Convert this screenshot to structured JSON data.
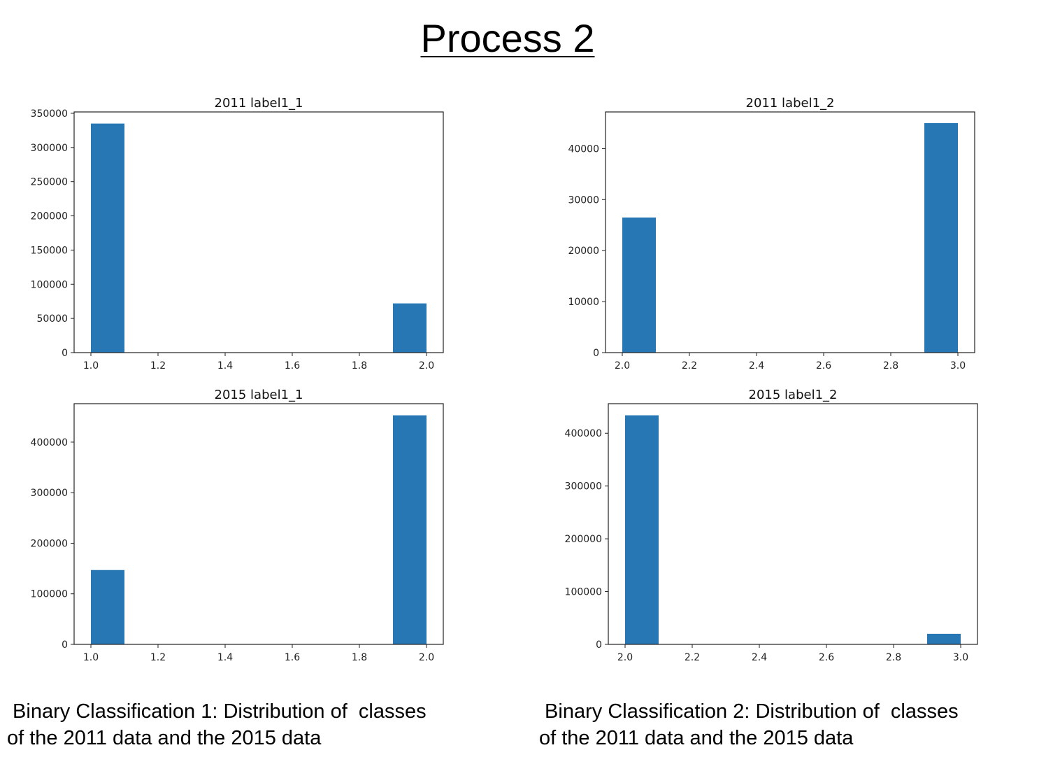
{
  "page": {
    "title": "Process 2",
    "captions": [
      [
        " Binary Classification 1: Distribution of  classes",
        "of the 2011 data and the 2015 data"
      ],
      [
        " Binary Classification 2: Distribution of  classes",
        "of the 2011 data and the 2015 data"
      ]
    ]
  },
  "colors": {
    "bar": "#2677b3",
    "axis": "#222222"
  },
  "chart_data": [
    {
      "type": "bar",
      "title": "2011 label1_1",
      "xlim": [
        0.95,
        2.05
      ],
      "ylim": [
        0,
        352000
      ],
      "xticks": [
        1.0,
        1.2,
        1.4,
        1.6,
        1.8,
        2.0
      ],
      "xtick_labels": [
        "1.0",
        "1.2",
        "1.4",
        "1.6",
        "1.8",
        "2.0"
      ],
      "yticks": [
        0,
        50000,
        100000,
        150000,
        200000,
        250000,
        300000,
        350000
      ],
      "ytick_labels": [
        "0",
        "50000",
        "100000",
        "150000",
        "200000",
        "250000",
        "300000",
        "350000"
      ],
      "bars": [
        {
          "x0": 1.0,
          "x1": 1.1,
          "value": 335000
        },
        {
          "x0": 1.9,
          "x1": 2.0,
          "value": 72000
        }
      ]
    },
    {
      "type": "bar",
      "title": "2011 label1_2",
      "xlim": [
        1.95,
        3.05
      ],
      "ylim": [
        0,
        47200
      ],
      "xticks": [
        2.0,
        2.2,
        2.4,
        2.6,
        2.8,
        3.0
      ],
      "xtick_labels": [
        "2.0",
        "2.2",
        "2.4",
        "2.6",
        "2.8",
        "3.0"
      ],
      "yticks": [
        0,
        10000,
        20000,
        30000,
        40000
      ],
      "ytick_labels": [
        "0",
        "10000",
        "20000",
        "30000",
        "40000"
      ],
      "bars": [
        {
          "x0": 2.0,
          "x1": 2.1,
          "value": 26500
        },
        {
          "x0": 2.9,
          "x1": 3.0,
          "value": 45000
        }
      ]
    },
    {
      "type": "bar",
      "title": "2015 label1_1",
      "xlim": [
        0.95,
        2.05
      ],
      "ylim": [
        0,
        476000
      ],
      "xticks": [
        1.0,
        1.2,
        1.4,
        1.6,
        1.8,
        2.0
      ],
      "xtick_labels": [
        "1.0",
        "1.2",
        "1.4",
        "1.6",
        "1.8",
        "2.0"
      ],
      "yticks": [
        0,
        100000,
        200000,
        300000,
        400000
      ],
      "ytick_labels": [
        "0",
        "100000",
        "200000",
        "300000",
        "400000"
      ],
      "bars": [
        {
          "x0": 1.0,
          "x1": 1.1,
          "value": 147000
        },
        {
          "x0": 1.9,
          "x1": 2.0,
          "value": 453000
        }
      ]
    },
    {
      "type": "bar",
      "title": "2015 label1_2",
      "xlim": [
        1.95,
        3.05
      ],
      "ylim": [
        0,
        456000
      ],
      "xticks": [
        2.0,
        2.2,
        2.4,
        2.6,
        2.8,
        3.0
      ],
      "xtick_labels": [
        "2.0",
        "2.2",
        "2.4",
        "2.6",
        "2.8",
        "3.0"
      ],
      "yticks": [
        0,
        100000,
        200000,
        300000,
        400000
      ],
      "ytick_labels": [
        "0",
        "100000",
        "200000",
        "300000",
        "400000"
      ],
      "bars": [
        {
          "x0": 2.0,
          "x1": 2.1,
          "value": 434000
        },
        {
          "x0": 2.9,
          "x1": 3.0,
          "value": 20000
        }
      ]
    }
  ]
}
